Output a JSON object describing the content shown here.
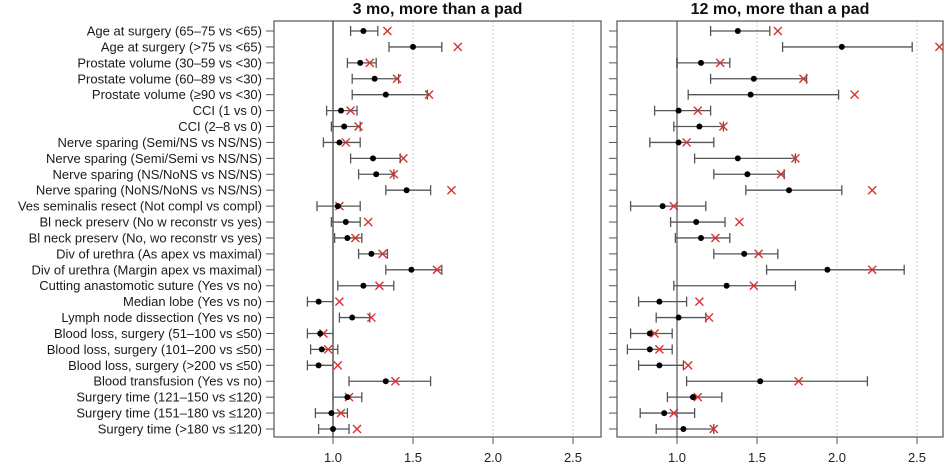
{
  "chart_data": {
    "type": "forest",
    "reference_value": 1.0,
    "xlim": [
      0.6,
      2.7
    ],
    "xticks": [
      1.0,
      1.5,
      2.0,
      2.5
    ],
    "xtick_labels": [
      "1.0",
      "1.5",
      "2.0",
      "2.5"
    ],
    "grid": "vertical dotted at 1.5, 2.0, 2.5",
    "legend": "none",
    "marker_legend": {
      "point": "black dot with CI whiskers",
      "cross": "red x"
    },
    "colors": {
      "point": "#000000",
      "ci": "#555555",
      "cross": "#d9322e",
      "reference": "#444444",
      "grid": "#cccccc"
    },
    "categories": [
      "Age at surgery (65–75 vs <65)",
      "Age at surgery (>75 vs <65)",
      "Prostate volume (30–59 vs <30)",
      "Prostate volume (60–89 vs <30)",
      "Prostate volume (≥90 vs <30)",
      "CCI (1 vs 0)",
      "CCI (2–8 vs 0)",
      "Nerve sparing (Semi/NS vs NS/NS)",
      "Nerve sparing (Semi/Semi vs NS/NS)",
      "Nerve sparing (NS/NoNS vs NS/NS)",
      "Nerve sparing (NoNS/NoNS vs NS/NS)",
      "Ves seminalis resect (Not compl vs compl)",
      "Bl neck preserv (No w reconstr vs yes)",
      "Bl neck preserv (No, wo reconstr vs yes)",
      "Div of urethra (As apex vs maximal)",
      "Div of urethra (Margin apex vs maximal)",
      "Cutting anastomotic suture (Yes vs no)",
      "Median lobe (Yes vs no)",
      "Lymph node dissection (Yes vs no)",
      "Blood loss, surgery (51–100 vs ≤50)",
      "Blood loss, surgery (101–200 vs ≤50)",
      "Blood loss, surgery (>200 vs ≤50)",
      "Blood transfusion (Yes vs no)",
      "Surgery time (121–150 vs ≤120)",
      "Surgery time (151–180 vs ≤120)",
      "Surgery time (>180 vs ≤120)"
    ],
    "panels": [
      {
        "title": "3 mo, more than a pad",
        "estimate": [
          1.19,
          1.5,
          1.17,
          1.26,
          1.33,
          1.05,
          1.07,
          1.04,
          1.25,
          1.27,
          1.46,
          1.03,
          1.08,
          1.09,
          1.24,
          1.49,
          1.19,
          0.91,
          1.12,
          0.92,
          0.93,
          0.91,
          1.33,
          1.09,
          0.99,
          1.0
        ],
        "lower": [
          1.11,
          1.35,
          1.09,
          1.12,
          1.12,
          0.96,
          0.99,
          0.94,
          1.11,
          1.16,
          1.33,
          0.9,
          0.99,
          1.01,
          1.16,
          1.33,
          1.03,
          0.84,
          1.04,
          0.84,
          0.86,
          0.84,
          1.1,
          1.0,
          0.89,
          0.91
        ],
        "upper": [
          1.28,
          1.68,
          1.27,
          1.41,
          1.59,
          1.15,
          1.17,
          1.17,
          1.42,
          1.38,
          1.61,
          1.17,
          1.17,
          1.18,
          1.34,
          1.68,
          1.38,
          1.0,
          1.23,
          1.0,
          1.03,
          1.0,
          1.61,
          1.18,
          1.09,
          1.1
        ],
        "cross": [
          1.34,
          1.78,
          1.23,
          1.4,
          1.6,
          1.11,
          1.16,
          1.08,
          1.44,
          1.38,
          1.74,
          1.04,
          1.22,
          1.14,
          1.31,
          1.65,
          1.29,
          1.04,
          1.24,
          0.94,
          0.97,
          1.03,
          1.39,
          1.1,
          1.05,
          1.15
        ]
      },
      {
        "title": "12 mo, more than a pad",
        "estimate": [
          1.38,
          2.03,
          1.15,
          1.48,
          1.46,
          1.01,
          1.14,
          1.01,
          1.38,
          1.44,
          1.7,
          0.91,
          1.12,
          1.15,
          1.42,
          1.94,
          1.31,
          0.89,
          1.01,
          0.83,
          0.83,
          0.89,
          1.52,
          1.1,
          0.92,
          1.04
        ],
        "lower": [
          1.21,
          1.66,
          1.0,
          1.21,
          1.07,
          0.86,
          0.98,
          0.83,
          1.11,
          1.23,
          1.43,
          0.71,
          0.96,
          0.99,
          1.23,
          1.56,
          0.98,
          0.76,
          0.87,
          0.71,
          0.69,
          0.76,
          1.06,
          0.94,
          0.77,
          0.87
        ],
        "upper": [
          1.58,
          2.47,
          1.33,
          1.81,
          2.01,
          1.21,
          1.29,
          1.23,
          1.74,
          1.67,
          2.03,
          1.18,
          1.3,
          1.33,
          1.63,
          2.42,
          1.74,
          1.06,
          1.18,
          0.97,
          0.97,
          1.04,
          2.19,
          1.28,
          1.11,
          1.23
        ],
        "cross": [
          1.63,
          2.64,
          1.27,
          1.79,
          2.11,
          1.13,
          1.29,
          1.06,
          1.74,
          1.65,
          2.22,
          0.98,
          1.39,
          1.24,
          1.51,
          2.22,
          1.48,
          1.14,
          1.2,
          0.86,
          0.89,
          1.07,
          1.76,
          1.13,
          0.98,
          1.23
        ]
      }
    ]
  }
}
